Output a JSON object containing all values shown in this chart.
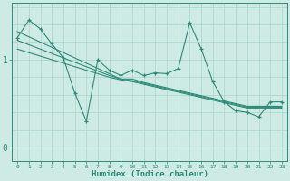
{
  "xlabel": "Humidex (Indice chaleur)",
  "x_values": [
    0,
    1,
    2,
    3,
    4,
    5,
    6,
    7,
    8,
    9,
    10,
    11,
    12,
    13,
    14,
    15,
    16,
    17,
    18,
    19,
    20,
    21,
    22,
    23
  ],
  "y_data": [
    1.25,
    1.45,
    1.35,
    1.18,
    1.02,
    0.62,
    0.3,
    1.0,
    0.88,
    0.82,
    0.88,
    0.82,
    0.85,
    0.84,
    0.9,
    1.42,
    1.12,
    0.75,
    0.52,
    0.42,
    0.4,
    0.35,
    0.52,
    0.52
  ],
  "regression1": [
    1.32,
    1.26,
    1.2,
    1.14,
    1.08,
    1.02,
    0.96,
    0.9,
    0.84,
    0.78,
    0.78,
    0.74,
    0.71,
    0.68,
    0.65,
    0.62,
    0.59,
    0.56,
    0.53,
    0.5,
    0.47,
    0.47,
    0.47,
    0.47
  ],
  "regression2": [
    1.22,
    1.17,
    1.12,
    1.07,
    1.02,
    0.97,
    0.92,
    0.87,
    0.82,
    0.78,
    0.76,
    0.73,
    0.7,
    0.67,
    0.64,
    0.61,
    0.58,
    0.55,
    0.52,
    0.49,
    0.46,
    0.46,
    0.46,
    0.46
  ],
  "regression3": [
    1.12,
    1.08,
    1.04,
    1.0,
    0.96,
    0.92,
    0.88,
    0.84,
    0.8,
    0.77,
    0.75,
    0.72,
    0.69,
    0.66,
    0.63,
    0.6,
    0.57,
    0.54,
    0.51,
    0.48,
    0.45,
    0.45,
    0.45,
    0.45
  ],
  "line_color": "#2e8b7a",
  "bg_color": "#ceeae4",
  "grid_color": "#aed4cc",
  "axis_color": "#2e8b7a",
  "ylim": [
    -0.15,
    1.65
  ],
  "yticks": [
    0,
    1
  ],
  "xlim": [
    -0.5,
    23.5
  ]
}
